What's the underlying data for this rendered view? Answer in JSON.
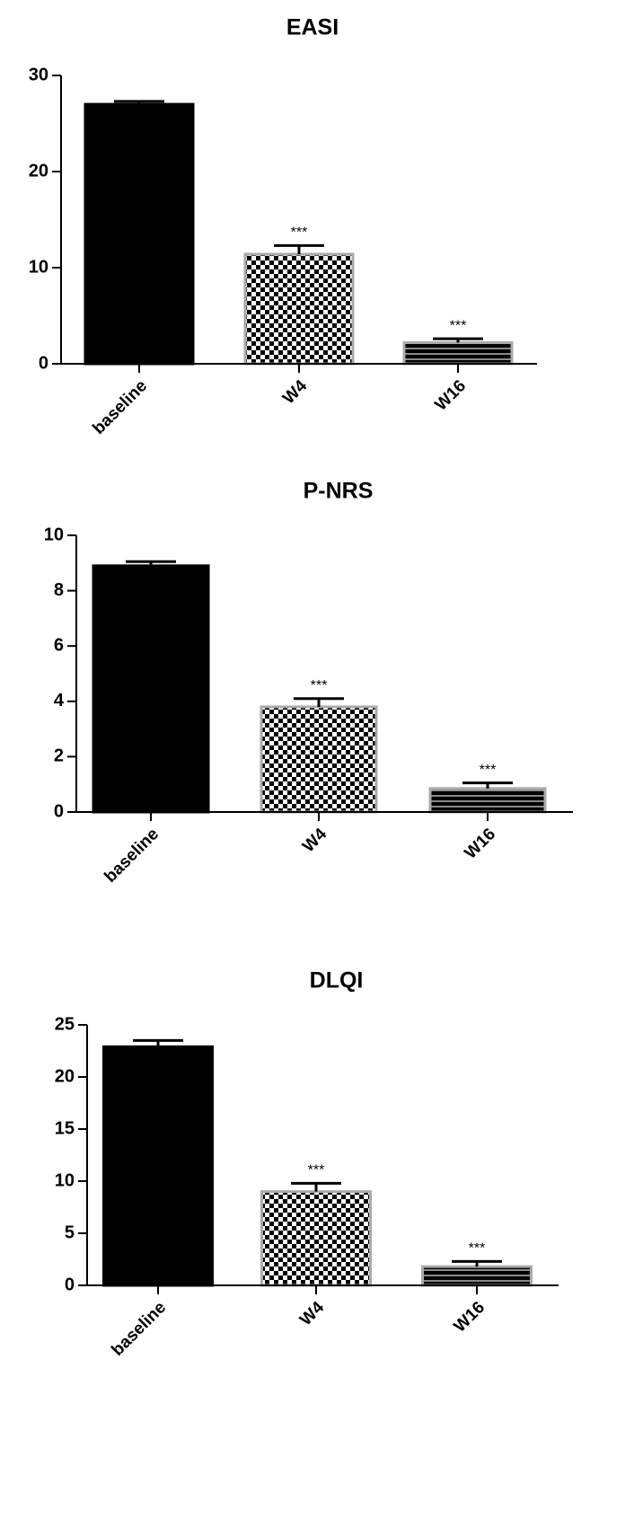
{
  "chart_data": [
    {
      "type": "bar",
      "title": "EASI",
      "categories": [
        "baseline",
        "W4",
        "W16"
      ],
      "values": [
        27.0,
        11.4,
        2.2
      ],
      "errors": [
        0.3,
        0.9,
        0.4
      ],
      "annotations": [
        null,
        "***",
        "***"
      ],
      "patterns": [
        "solid",
        "checker",
        "stripes"
      ],
      "ylim": [
        0,
        30
      ],
      "yticks": [
        0,
        10,
        20,
        30
      ]
    },
    {
      "type": "bar",
      "title": "P-NRS",
      "categories": [
        "baseline",
        "W4",
        "W16"
      ],
      "values": [
        8.9,
        3.8,
        0.85
      ],
      "errors": [
        0.15,
        0.3,
        0.2
      ],
      "annotations": [
        null,
        "***",
        "***"
      ],
      "patterns": [
        "solid",
        "checker",
        "stripes"
      ],
      "ylim": [
        0,
        10
      ],
      "yticks": [
        0,
        2,
        4,
        6,
        8,
        10
      ]
    },
    {
      "type": "bar",
      "title": "DLQI",
      "categories": [
        "baseline",
        "W4",
        "W16"
      ],
      "values": [
        22.9,
        9.0,
        1.8
      ],
      "errors": [
        0.6,
        0.8,
        0.5
      ],
      "annotations": [
        null,
        "***",
        "***"
      ],
      "patterns": [
        "solid",
        "checker",
        "stripes"
      ],
      "ylim": [
        0,
        25
      ],
      "yticks": [
        0,
        5,
        10,
        15,
        20,
        25
      ]
    }
  ]
}
